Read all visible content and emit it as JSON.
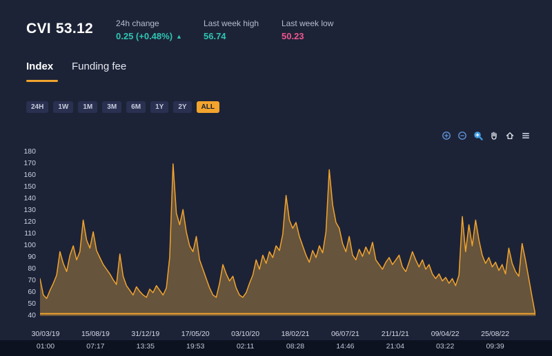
{
  "header": {
    "symbol": "CVI",
    "price": "53.12",
    "change": {
      "label": "24h change",
      "value": "0.25 (+0.48%)",
      "direction": "up"
    },
    "week_high": {
      "label": "Last week high",
      "value": "56.74"
    },
    "week_low": {
      "label": "Last week low",
      "value": "50.23"
    }
  },
  "icons": {
    "caret_up": "▲"
  },
  "tabs": [
    {
      "label": "Index",
      "active": true
    },
    {
      "label": "Funding fee",
      "active": false
    }
  ],
  "ranges": [
    {
      "label": "24H",
      "active": false
    },
    {
      "label": "1W",
      "active": false
    },
    {
      "label": "1M",
      "active": false
    },
    {
      "label": "3M",
      "active": false
    },
    {
      "label": "6M",
      "active": false
    },
    {
      "label": "1Y",
      "active": false
    },
    {
      "label": "2Y",
      "active": false
    },
    {
      "label": "ALL",
      "active": true
    }
  ],
  "toolbar": {
    "icons": [
      "zoom-in",
      "zoom-out",
      "zoom-select",
      "pan",
      "home",
      "menu"
    ],
    "active": "zoom-select"
  },
  "colors": {
    "background": "#1d2337",
    "accent_orange": "#f2a42d",
    "teal": "#2ec6b2",
    "pink": "#f0568e",
    "toolbar_blue": "#4a9be0",
    "footer": "#0c1220"
  },
  "chart_data": {
    "type": "area",
    "title": "CVI index history",
    "grid": false,
    "legend": "none",
    "ylim": [
      40,
      180
    ],
    "yticks": [
      180,
      170,
      160,
      150,
      140,
      130,
      120,
      110,
      100,
      90,
      80,
      70,
      60,
      50,
      40
    ],
    "x_labels": [
      {
        "date": "30/03/19",
        "time": "01:00"
      },
      {
        "date": "15/08/19",
        "time": "07:17"
      },
      {
        "date": "31/12/19",
        "time": "13:35"
      },
      {
        "date": "17/05/20",
        "time": "19:53"
      },
      {
        "date": "03/10/20",
        "time": "02:11"
      },
      {
        "date": "18/02/21",
        "time": "08:28"
      },
      {
        "date": "06/07/21",
        "time": "14:46"
      },
      {
        "date": "21/11/21",
        "time": "21:04"
      },
      {
        "date": "09/04/22",
        "time": "03:22"
      },
      {
        "date": "25/08/22",
        "time": "09:39"
      }
    ],
    "values": [
      72,
      58,
      55,
      62,
      68,
      75,
      95,
      85,
      78,
      92,
      100,
      88,
      95,
      122,
      105,
      98,
      112,
      96,
      90,
      84,
      80,
      76,
      71,
      67,
      93,
      74,
      66,
      62,
      58,
      65,
      61,
      58,
      56,
      63,
      60,
      66,
      62,
      58,
      64,
      90,
      170,
      128,
      118,
      131,
      112,
      100,
      95,
      108,
      88,
      80,
      72,
      64,
      58,
      56,
      68,
      84,
      76,
      70,
      74,
      64,
      58,
      56,
      60,
      68,
      75,
      88,
      80,
      92,
      85,
      95,
      90,
      100,
      96,
      110,
      143,
      122,
      115,
      120,
      108,
      100,
      92,
      86,
      96,
      90,
      100,
      94,
      112,
      165,
      135,
      120,
      115,
      102,
      95,
      108,
      92,
      88,
      97,
      91,
      99,
      93,
      103,
      88,
      84,
      80,
      86,
      90,
      84,
      88,
      92,
      82,
      78,
      86,
      95,
      88,
      82,
      88,
      80,
      84,
      76,
      72,
      76,
      70,
      73,
      68,
      72,
      66,
      75,
      125,
      95,
      118,
      100,
      122,
      105,
      92,
      85,
      90,
      82,
      86,
      79,
      84,
      76,
      98,
      85,
      78,
      74,
      102,
      88,
      72,
      56,
      41
    ],
    "reference_line": 42,
    "line_color": "#f2a42d",
    "fill_color": "rgba(205,152,66,0.42)"
  }
}
